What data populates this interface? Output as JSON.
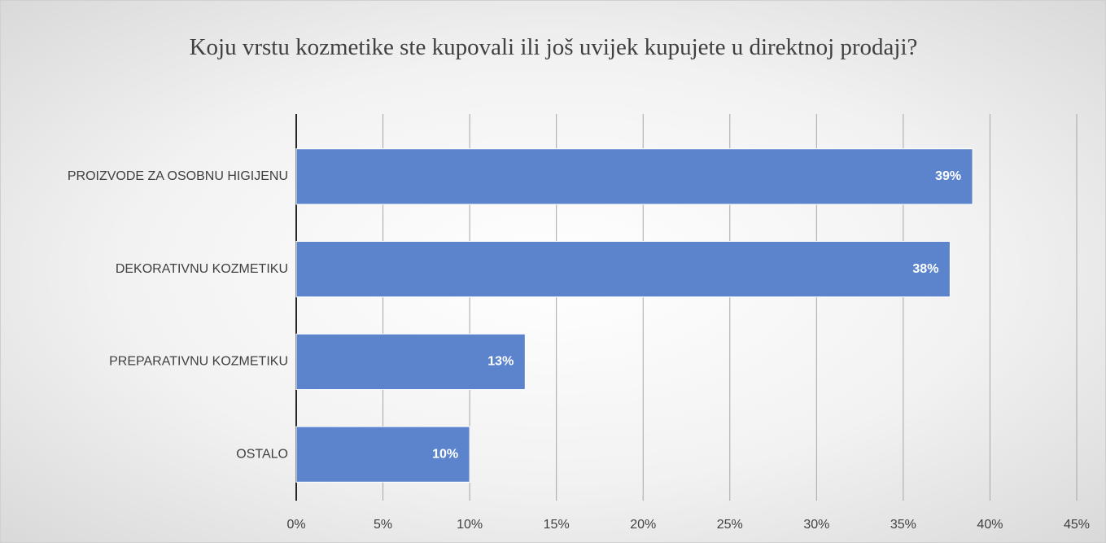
{
  "chart_data": {
    "type": "barh",
    "title": "Koju vrstu kozmetike ste kupovali ili još uvijek kupujete u direktnoj prodaji?",
    "categories": [
      "PROIZVODE ZA OSOBNU HIGIJENU",
      "DEKORATIVNU KOZMETIKU",
      "PREPARATIVNU KOZMETIKU",
      "OSTALO"
    ],
    "values": [
      39,
      37.7,
      13.2,
      10
    ],
    "value_labels": [
      "39%",
      "38%",
      "13%",
      "10%"
    ],
    "color": "#5b84cc",
    "xlim": [
      0,
      45
    ],
    "xticks": [
      {
        "value": 0,
        "label": "0%"
      },
      {
        "value": 5,
        "label": "5%"
      },
      {
        "value": 10,
        "label": "10%"
      },
      {
        "value": 15,
        "label": "15%"
      },
      {
        "value": 20,
        "label": "20%"
      },
      {
        "value": 25,
        "label": "25%"
      },
      {
        "value": 30,
        "label": "30%"
      },
      {
        "value": 35,
        "label": "35%"
      },
      {
        "value": 40,
        "label": "40%"
      },
      {
        "value": 45,
        "label": "45%"
      }
    ],
    "grid": true
  }
}
